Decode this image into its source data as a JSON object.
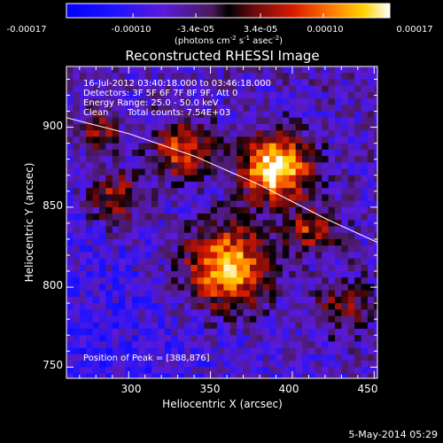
{
  "colorbar": {
    "tick_labels": [
      "-0.00017",
      "-0.00010",
      "-3.4e-05",
      "3.4e-05",
      "0.00010",
      "0.00017"
    ],
    "tick_values": [
      -0.00017,
      -0.0001,
      -3.4e-05,
      3.4e-05,
      0.0001,
      0.00017
    ],
    "range": [
      -0.00017,
      0.00017
    ],
    "unit_base": "(photons cm",
    "unit_exp1": "-2",
    "unit_mid": " s",
    "unit_exp2": "-1",
    "unit_mid2": " asec",
    "unit_exp3": "-2",
    "unit_end": ")"
  },
  "chart_data": {
    "type": "heatmap",
    "title": "Reconstructed RHESSI Image",
    "xlabel": "Heliocentric X (arcsec)",
    "ylabel": "Heliocentric Y (arcsec)",
    "xlim": [
      262,
      452
    ],
    "ylim": [
      743,
      938
    ],
    "x_ticks": [
      300,
      350,
      400,
      450
    ],
    "y_ticks": [
      750,
      800,
      850,
      900
    ],
    "grid": false,
    "limb_curve": [
      [
        262,
        906
      ],
      [
        300,
        896
      ],
      [
        340,
        882
      ],
      [
        380,
        864
      ],
      [
        420,
        843
      ],
      [
        452,
        828
      ]
    ],
    "sources": [
      {
        "x": 388,
        "y": 876,
        "amp": 1.0,
        "sigma": 14
      },
      {
        "x": 358,
        "y": 815,
        "amp": 0.85,
        "sigma": 18
      },
      {
        "x": 330,
        "y": 888,
        "amp": 0.55,
        "sigma": 13
      },
      {
        "x": 290,
        "y": 858,
        "amp": 0.45,
        "sigma": 12
      },
      {
        "x": 410,
        "y": 838,
        "amp": 0.5,
        "sigma": 10
      },
      {
        "x": 428,
        "y": 790,
        "amp": 0.35,
        "sigma": 12
      },
      {
        "x": 280,
        "y": 900,
        "amp": 0.4,
        "sigma": 9
      }
    ],
    "annotations": [
      "16-Jul-2012 03:40:18.000 to 03:46:18.000",
      "Detectors: 3F 5F 6F 7F 8F 9F, Att 0",
      "Energy Range: 25.0 - 50.0 keV",
      "Clean",
      "Total counts: 7.54E+03"
    ],
    "peak_label": "Position of Peak = [388,876]"
  },
  "footer": {
    "date": "5-May-2014 05:29"
  }
}
